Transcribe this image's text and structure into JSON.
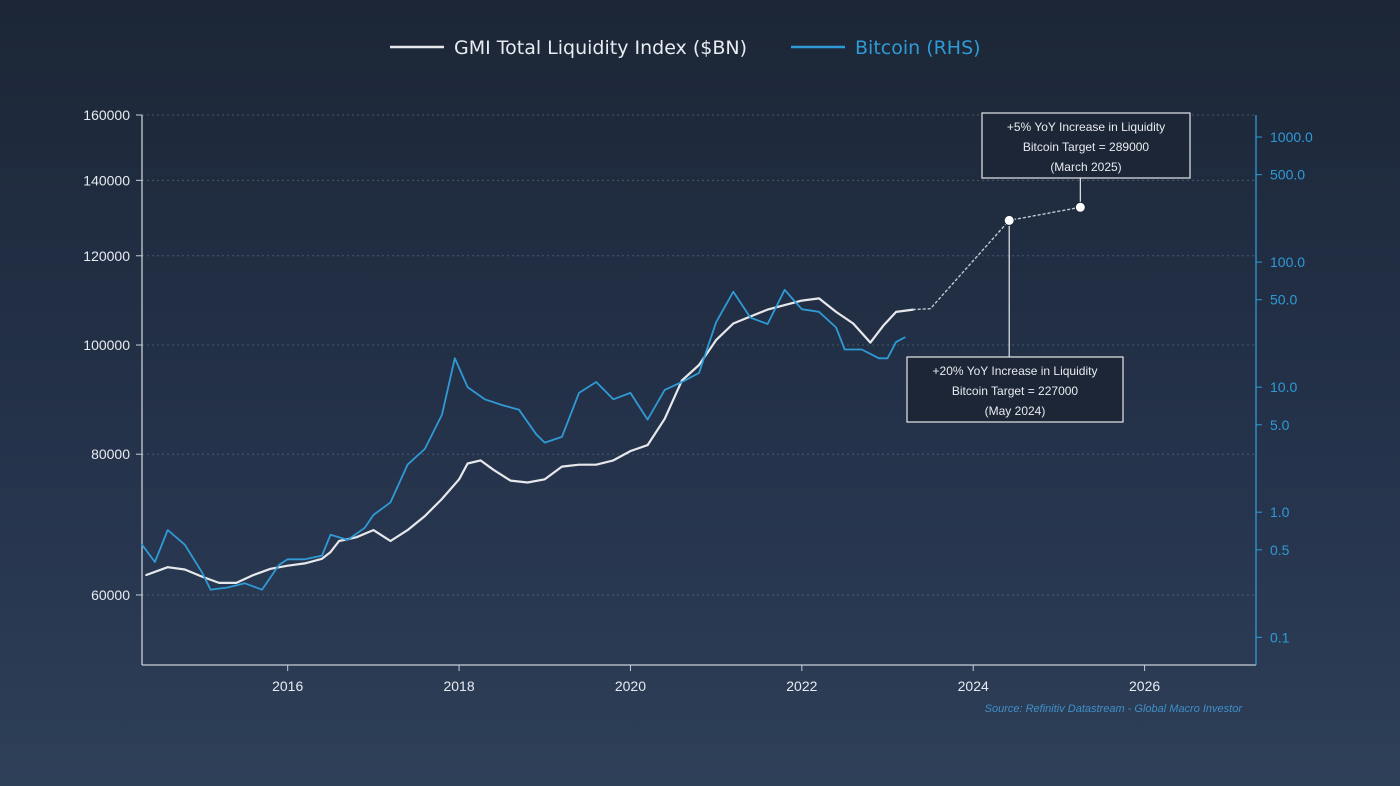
{
  "colors": {
    "liquidity": "#e6e8ec",
    "bitcoin": "#2f9ad6",
    "axis_left": "#c9ced6",
    "axis_right": "#2f9ad6",
    "grid": "#5b6a80",
    "text": "#e8ebf0",
    "source": "#3f8fc9"
  },
  "chart_data": {
    "type": "line",
    "title": "",
    "legend": {
      "placement": "top-center",
      "entries": [
        "GMI Total Liquidity Index ($BN)",
        "Bitcoin (RHS)"
      ]
    },
    "x_axis": {
      "label": "",
      "range": [
        2014.3,
        2027.3
      ],
      "ticks": [
        "2016",
        "2018",
        "2020",
        "2022",
        "2024",
        "2026"
      ]
    },
    "y_axis_left": {
      "label": "",
      "scale": "log",
      "range": [
        52000,
        160000
      ],
      "ticks": [
        "60000",
        "80000",
        "100000",
        "120000",
        "140000",
        "160000"
      ]
    },
    "y_axis_right": {
      "label": "",
      "scale": "log",
      "unit": "thousand USD",
      "range": [
        0.06,
        1500
      ],
      "ticks": [
        "0.1",
        "0.5",
        "1.0",
        "5.0",
        "10.0",
        "50.0",
        "100.0",
        "500.0",
        "1000.0"
      ]
    },
    "grid": "horizontal dashed",
    "series": [
      {
        "name": "GMI Total Liquidity Index ($BN)",
        "axis": "left",
        "points": [
          [
            2014.35,
            62500
          ],
          [
            2014.6,
            63500
          ],
          [
            2014.8,
            63200
          ],
          [
            2015.0,
            62300
          ],
          [
            2015.2,
            61500
          ],
          [
            2015.4,
            61500
          ],
          [
            2015.6,
            62500
          ],
          [
            2015.8,
            63300
          ],
          [
            2016.0,
            63700
          ],
          [
            2016.2,
            64000
          ],
          [
            2016.4,
            64600
          ],
          [
            2016.5,
            65500
          ],
          [
            2016.6,
            67000
          ],
          [
            2016.8,
            67500
          ],
          [
            2017.0,
            68500
          ],
          [
            2017.2,
            67000
          ],
          [
            2017.4,
            68500
          ],
          [
            2017.6,
            70500
          ],
          [
            2017.8,
            73000
          ],
          [
            2018.0,
            76000
          ],
          [
            2018.1,
            78500
          ],
          [
            2018.25,
            79000
          ],
          [
            2018.4,
            77500
          ],
          [
            2018.6,
            75800
          ],
          [
            2018.8,
            75500
          ],
          [
            2019.0,
            76000
          ],
          [
            2019.2,
            78000
          ],
          [
            2019.4,
            78300
          ],
          [
            2019.6,
            78300
          ],
          [
            2019.8,
            79000
          ],
          [
            2020.0,
            80500
          ],
          [
            2020.2,
            81500
          ],
          [
            2020.4,
            86000
          ],
          [
            2020.6,
            93000
          ],
          [
            2020.8,
            96000
          ],
          [
            2021.0,
            101000
          ],
          [
            2021.2,
            104500
          ],
          [
            2021.4,
            106000
          ],
          [
            2021.6,
            107500
          ],
          [
            2021.8,
            108500
          ],
          [
            2022.0,
            109500
          ],
          [
            2022.2,
            110000
          ],
          [
            2022.4,
            107000
          ],
          [
            2022.6,
            104500
          ],
          [
            2022.8,
            100500
          ],
          [
            2022.95,
            104000
          ],
          [
            2023.1,
            107000
          ],
          [
            2023.3,
            107500
          ]
        ]
      },
      {
        "name": "Bitcoin (RHS)",
        "axis": "right",
        "points": [
          [
            2014.3,
            0.55
          ],
          [
            2014.45,
            0.4
          ],
          [
            2014.6,
            0.72
          ],
          [
            2014.8,
            0.55
          ],
          [
            2015.0,
            0.33
          ],
          [
            2015.1,
            0.24
          ],
          [
            2015.3,
            0.25
          ],
          [
            2015.5,
            0.27
          ],
          [
            2015.7,
            0.24
          ],
          [
            2015.9,
            0.38
          ],
          [
            2016.0,
            0.42
          ],
          [
            2016.2,
            0.42
          ],
          [
            2016.4,
            0.45
          ],
          [
            2016.5,
            0.66
          ],
          [
            2016.7,
            0.6
          ],
          [
            2016.9,
            0.75
          ],
          [
            2017.0,
            0.95
          ],
          [
            2017.2,
            1.2
          ],
          [
            2017.4,
            2.4
          ],
          [
            2017.6,
            3.2
          ],
          [
            2017.8,
            6.0
          ],
          [
            2017.95,
            17.0
          ],
          [
            2018.1,
            10.0
          ],
          [
            2018.3,
            8.0
          ],
          [
            2018.5,
            7.2
          ],
          [
            2018.7,
            6.6
          ],
          [
            2018.9,
            4.2
          ],
          [
            2019.0,
            3.6
          ],
          [
            2019.2,
            4.0
          ],
          [
            2019.4,
            9.0
          ],
          [
            2019.6,
            11.0
          ],
          [
            2019.8,
            8.0
          ],
          [
            2020.0,
            9.0
          ],
          [
            2020.2,
            5.5
          ],
          [
            2020.4,
            9.5
          ],
          [
            2020.6,
            11.0
          ],
          [
            2020.8,
            13.0
          ],
          [
            2021.0,
            33.0
          ],
          [
            2021.2,
            58.0
          ],
          [
            2021.4,
            36.0
          ],
          [
            2021.6,
            32.0
          ],
          [
            2021.8,
            60.0
          ],
          [
            2021.9,
            50.0
          ],
          [
            2022.0,
            42.0
          ],
          [
            2022.2,
            40.0
          ],
          [
            2022.4,
            30.0
          ],
          [
            2022.5,
            20.0
          ],
          [
            2022.7,
            20.0
          ],
          [
            2022.9,
            17.0
          ],
          [
            2023.0,
            17.0
          ],
          [
            2023.1,
            23.0
          ],
          [
            2023.2,
            25.0
          ]
        ]
      },
      {
        "name": "",
        "axis": "left",
        "style": "dotted projection",
        "points": [
          [
            2023.3,
            107500
          ],
          [
            2023.5,
            107700
          ],
          [
            2024.42,
            129000
          ],
          [
            2025.25,
            132500
          ]
        ]
      }
    ],
    "annotations": [
      {
        "lines": [
          "+5% YoY Increase in Liquidity",
          "Bitcoin Target = 289000",
          "(March 2025)"
        ],
        "point": [
          2025.25,
          132500
        ]
      },
      {
        "lines": [
          "+20% YoY Increase in Liquidity",
          "Bitcoin Target = 227000",
          "(May 2024)"
        ],
        "point": [
          2024.42,
          129000
        ]
      }
    ],
    "source": "Source: Refinitiv Datastream - Global Macro Investor"
  }
}
